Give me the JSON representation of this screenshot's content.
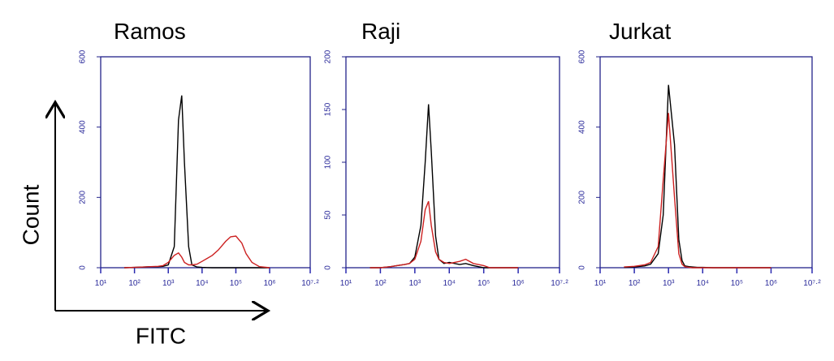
{
  "annotations": {
    "y_label": "Count",
    "x_label": "FITC"
  },
  "chart_data": [
    {
      "type": "line",
      "title": "Ramos",
      "xlog": true,
      "x": [
        50,
        100,
        200,
        300,
        500,
        700,
        1000,
        1500,
        2000,
        2500,
        3000,
        4000,
        5000,
        7000,
        10000,
        20000,
        30000,
        50000,
        70000,
        100000,
        150000,
        200000,
        300000,
        500000,
        1000000
      ],
      "series": [
        {
          "color": "#000000",
          "values": [
            0,
            1,
            2,
            3,
            3,
            4,
            8,
            60,
            420,
            490,
            300,
            60,
            8,
            2,
            1,
            0,
            0,
            0,
            0,
            0,
            0,
            0,
            0,
            0,
            0
          ]
        },
        {
          "color": "#cc2020",
          "values": [
            0,
            1,
            2,
            3,
            4,
            6,
            15,
            35,
            42,
            30,
            15,
            8,
            8,
            10,
            18,
            35,
            50,
            75,
            88,
            90,
            70,
            40,
            15,
            3,
            0
          ]
        }
      ],
      "xlim": [
        10,
        15848932
      ],
      "xticks": [
        {
          "value": 10,
          "label": "10¹"
        },
        {
          "value": 100,
          "label": "10²"
        },
        {
          "value": 1000,
          "label": "10³"
        },
        {
          "value": 10000,
          "label": "10⁴"
        },
        {
          "value": 100000,
          "label": "10⁵"
        },
        {
          "value": 1000000,
          "label": "10⁶"
        },
        {
          "value": 15848932,
          "label": "10⁷·²"
        }
      ],
      "ylim": [
        0,
        600
      ],
      "yticks": [
        0,
        200,
        400,
        600
      ]
    },
    {
      "type": "line",
      "title": "Raji",
      "xlog": true,
      "x": [
        50,
        100,
        200,
        300,
        500,
        700,
        1000,
        1500,
        2000,
        2500,
        3000,
        4000,
        5000,
        7000,
        10000,
        20000,
        30000,
        50000,
        70000,
        100000,
        150000,
        200000,
        300000,
        500000,
        1000000
      ],
      "series": [
        {
          "color": "#000000",
          "values": [
            0,
            0,
            1,
            2,
            3,
            4,
            10,
            40,
            100,
            155,
            110,
            30,
            8,
            4,
            5,
            3,
            4,
            2,
            1,
            0,
            0,
            0,
            0,
            0,
            0
          ]
        },
        {
          "color": "#cc2020",
          "values": [
            0,
            0,
            1,
            2,
            3,
            4,
            8,
            25,
            55,
            63,
            40,
            15,
            8,
            5,
            4,
            6,
            8,
            4,
            3,
            2,
            0,
            0,
            0,
            0,
            0
          ]
        }
      ],
      "xlim": [
        10,
        15848932
      ],
      "xticks": [
        {
          "value": 10,
          "label": "10¹"
        },
        {
          "value": 100,
          "label": "10²"
        },
        {
          "value": 1000,
          "label": "10³"
        },
        {
          "value": 10000,
          "label": "10⁴"
        },
        {
          "value": 100000,
          "label": "10⁵"
        },
        {
          "value": 1000000,
          "label": "10⁶"
        },
        {
          "value": 15848932,
          "label": "10⁷·²"
        }
      ],
      "ylim": [
        0,
        200
      ],
      "yticks": [
        0,
        50,
        100,
        150,
        200
      ]
    },
    {
      "type": "line",
      "title": "Jurkat",
      "xlog": true,
      "x": [
        50,
        100,
        200,
        300,
        500,
        700,
        1000,
        1500,
        2000,
        2500,
        3000,
        4000,
        5000,
        7000,
        10000,
        20000,
        30000,
        50000,
        70000,
        100000,
        150000,
        200000,
        300000,
        500000,
        1000000
      ],
      "series": [
        {
          "color": "#000000",
          "values": [
            1,
            2,
            5,
            10,
            40,
            150,
            520,
            350,
            80,
            20,
            5,
            3,
            2,
            1,
            1,
            0,
            0,
            0,
            0,
            0,
            0,
            0,
            0,
            0,
            0
          ]
        },
        {
          "color": "#cc2020",
          "values": [
            2,
            4,
            8,
            15,
            60,
            250,
            440,
            200,
            40,
            10,
            3,
            1,
            0,
            0,
            0,
            0,
            0,
            0,
            0,
            0,
            0,
            0,
            0,
            0,
            0
          ]
        }
      ],
      "xlim": [
        10,
        15848932
      ],
      "xticks": [
        {
          "value": 10,
          "label": "10¹"
        },
        {
          "value": 100,
          "label": "10²"
        },
        {
          "value": 1000,
          "label": "10³"
        },
        {
          "value": 10000,
          "label": "10⁴"
        },
        {
          "value": 100000,
          "label": "10⁵"
        },
        {
          "value": 1000000,
          "label": "10⁶"
        },
        {
          "value": 15848932,
          "label": "10⁷·²"
        }
      ],
      "ylim": [
        0,
        600
      ],
      "yticks": [
        0,
        200,
        400,
        600
      ]
    }
  ]
}
